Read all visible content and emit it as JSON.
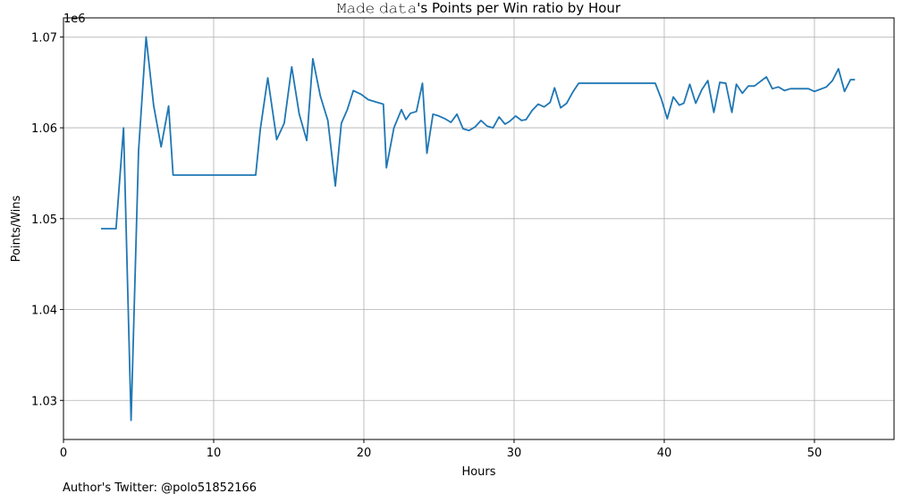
{
  "chart_data": {
    "type": "line",
    "title": "𝙼𝚊𝚍𝚎 𝚍𝚊𝚝𝚊's Points per Win ratio by Hour",
    "xlabel": "Hours",
    "ylabel": "Points/Wins",
    "y_offset_label": "1e6",
    "footer": "Author's Twitter: @polo51852166",
    "xlim": [
      0,
      55.3
    ],
    "ylim": [
      1025700,
      1072100
    ],
    "x_ticks": [
      0,
      10,
      20,
      30,
      40,
      50
    ],
    "x_tick_labels": [
      "0",
      "10",
      "20",
      "30",
      "40",
      "50"
    ],
    "y_ticks": [
      1030000,
      1040000,
      1050000,
      1060000,
      1070000
    ],
    "y_tick_labels": [
      "1.03",
      "1.04",
      "1.05",
      "1.06",
      "1.07"
    ],
    "grid": true,
    "colors": {
      "series": "#1f77b4"
    },
    "series": [
      {
        "x": [
          2.5,
          3.5,
          4.0,
          4.5,
          5.0,
          5.5,
          6.0,
          6.5,
          7.0,
          7.3,
          12.8,
          13.1,
          13.6,
          14.2,
          14.7,
          15.2,
          15.7,
          16.2,
          16.6,
          17.1,
          17.6,
          18.1,
          18.5,
          18.9,
          19.3,
          19.8,
          20.3,
          21.3,
          21.5,
          22.0,
          22.5,
          22.8,
          23.1,
          23.5,
          23.9,
          24.2,
          24.6,
          25.0,
          25.4,
          25.8,
          26.2,
          26.6,
          27.0,
          27.4,
          27.8,
          28.2,
          28.6,
          29.0,
          29.4,
          29.7,
          30.1,
          30.5,
          30.8,
          31.2,
          31.6,
          32.0,
          32.4,
          32.7,
          33.1,
          33.5,
          33.9,
          34.3,
          39.4,
          39.8,
          40.2,
          40.6,
          41.0,
          41.3,
          41.7,
          42.1,
          42.5,
          42.9,
          43.3,
          43.7,
          44.1,
          44.5,
          44.8,
          45.2,
          45.6,
          46.0,
          46.8,
          47.2,
          47.6,
          48.0,
          48.4,
          48.8,
          49.2,
          49.6,
          50.0,
          50.8,
          51.2,
          51.6,
          52.0,
          52.4,
          52.7
        ],
        "values": [
          1048900,
          1048900,
          1060000,
          1027800,
          1057500,
          1070000,
          1062500,
          1057900,
          1062400,
          1054800,
          1054800,
          1059800,
          1065500,
          1058700,
          1060500,
          1066700,
          1061500,
          1058600,
          1067600,
          1063500,
          1060800,
          1053600,
          1060500,
          1062000,
          1064100,
          1063700,
          1063100,
          1062600,
          1055600,
          1060000,
          1062000,
          1060900,
          1061600,
          1061800,
          1064900,
          1057200,
          1061500,
          1061300,
          1061000,
          1060600,
          1061500,
          1059900,
          1059700,
          1060100,
          1060800,
          1060200,
          1060000,
          1061200,
          1060400,
          1060700,
          1061300,
          1060800,
          1060900,
          1061900,
          1062600,
          1062300,
          1062800,
          1064400,
          1062200,
          1062700,
          1063900,
          1064900,
          1064900,
          1063200,
          1061000,
          1063400,
          1062500,
          1062700,
          1064800,
          1062700,
          1064200,
          1065200,
          1061700,
          1065000,
          1064900,
          1061700,
          1064800,
          1063800,
          1064600,
          1064600,
          1065600,
          1064300,
          1064500,
          1064100,
          1064300,
          1064300,
          1064300,
          1064300,
          1064000,
          1064500,
          1065200,
          1066500,
          1064000,
          1065300,
          1065300
        ]
      }
    ]
  }
}
